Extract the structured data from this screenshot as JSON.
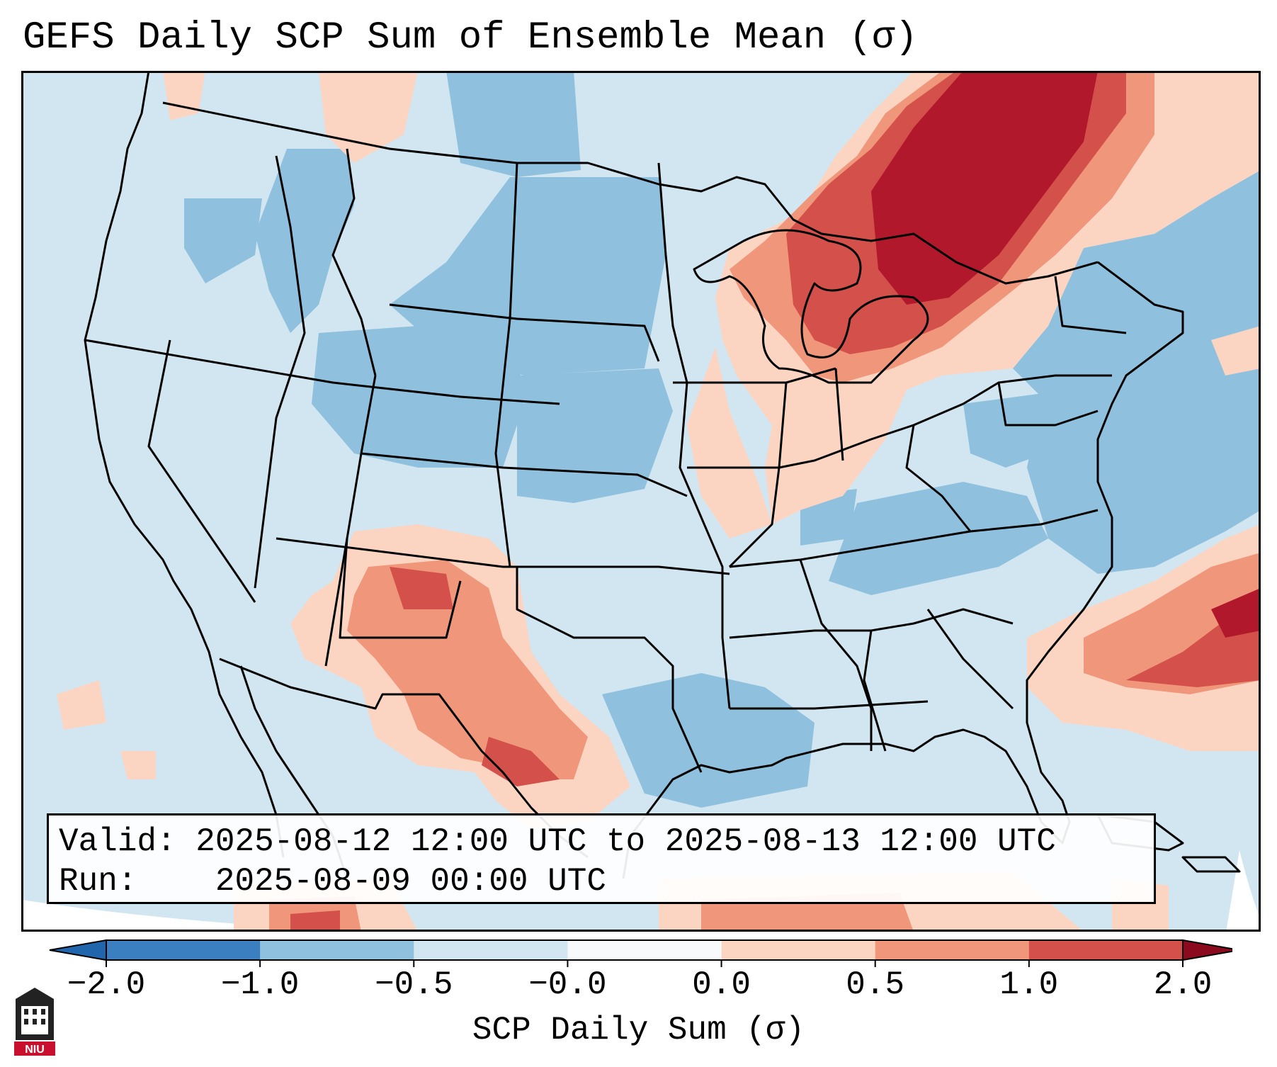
{
  "title": "GEFS Daily SCP Sum of Ensemble Mean (σ)",
  "info": {
    "valid_label": "Valid:",
    "valid_text": "2025-08-12 12:00 UTC to 2025-08-13 12:00 UTC",
    "run_label": "Run:",
    "run_text": "2025-08-09 00:00 UTC"
  },
  "colorbar": {
    "label": "SCP Daily Sum (σ)",
    "ticks": [
      "−2.0",
      "−1.0",
      "−0.5",
      "−0.0",
      "0.0",
      "0.5",
      "1.0",
      "2.0"
    ],
    "colors": [
      "#3b7fc0",
      "#8fc1de",
      "#d2e6f1",
      "#f8f9fa",
      "#fcd5c2",
      "#f0967a",
      "#d4504a",
      "#b2182b"
    ]
  },
  "logo_text": "NIU"
}
